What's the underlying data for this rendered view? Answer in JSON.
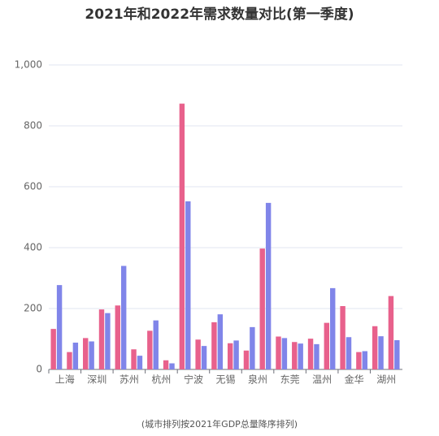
{
  "chart_data": {
    "type": "bar",
    "title": "2021年和2022年需求数量对比(第一季度)",
    "note": "(城市排列按2021年GDP总量降序排列)",
    "categories": [
      "上海",
      null,
      "深圳",
      null,
      "苏州",
      null,
      "杭州",
      null,
      "宁波",
      null,
      "无锡",
      null,
      "泉州",
      null,
      "东莞",
      null,
      "温州",
      null,
      "金华",
      null,
      "湖州",
      null
    ],
    "series": [
      {
        "color": "#e8618c",
        "values": [
          133,
          57,
          103,
          197,
          210,
          66,
          127,
          30,
          873,
          98,
          155,
          86,
          62,
          397,
          108,
          90,
          101,
          153,
          208,
          57,
          142,
          241
        ]
      },
      {
        "color": "#8085e9",
        "values": [
          277,
          88,
          92,
          185,
          340,
          45,
          161,
          20,
          552,
          77,
          181,
          95,
          139,
          547,
          103,
          85,
          83,
          267,
          106,
          60,
          109,
          96
        ]
      }
    ],
    "ylim": [
      0,
      1000
    ],
    "yticks": [
      0,
      200,
      400,
      600,
      800,
      {
        "value": 1000,
        "label": "1,000"
      }
    ],
    "grid": true
  }
}
